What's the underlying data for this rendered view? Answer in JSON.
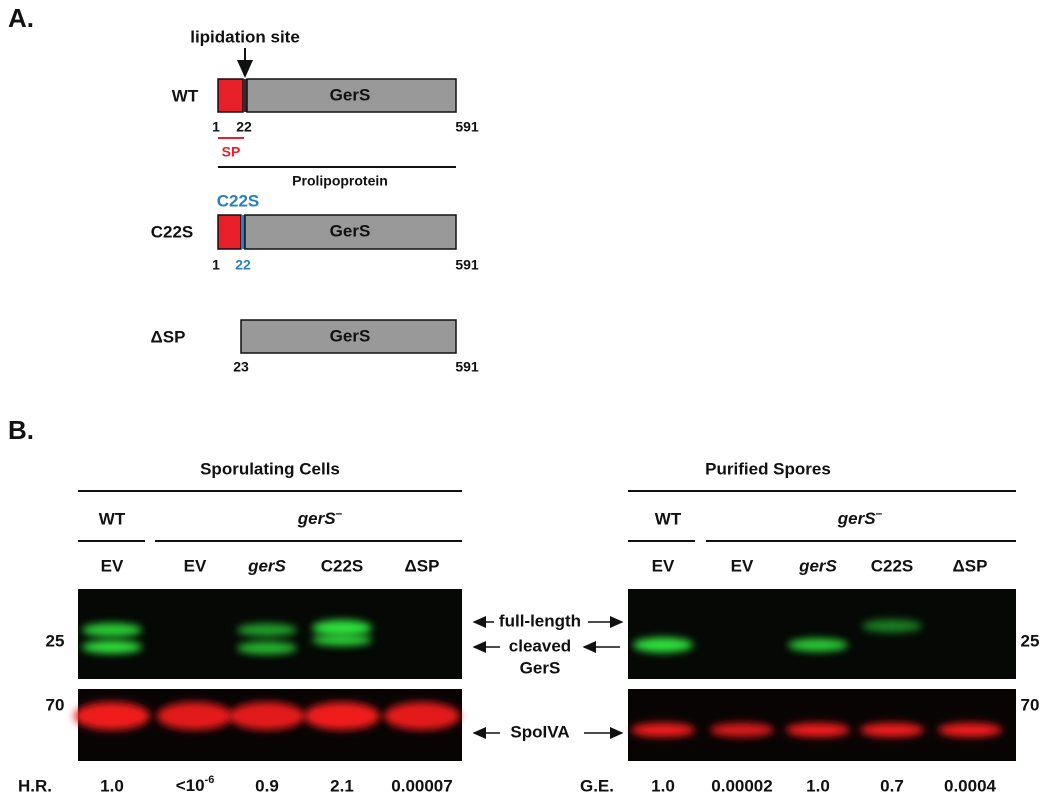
{
  "panel_a": {
    "label": "A.",
    "annotation": "lipidation site",
    "sp_label": "SP",
    "prolipoprotein": "Prolipoprotein",
    "mutation": "C22S",
    "constructs": [
      {
        "name": "WT",
        "domain": "GerS",
        "positions": [
          1,
          22,
          591
        ]
      },
      {
        "name": "C22S",
        "domain": "GerS",
        "positions": [
          1,
          22,
          591
        ]
      },
      {
        "name": "ΔSP",
        "domain": "GerS",
        "positions": [
          23,
          591
        ]
      }
    ]
  },
  "panel_b": {
    "label": "B.",
    "band_labels": [
      "full-length",
      "cleaved",
      "GerS",
      "SpoIVA"
    ],
    "blots": [
      {
        "title": "Sporulating Cells",
        "wt": "WT",
        "mutant": "gerS",
        "mutant_sup": "–",
        "lanes": [
          "EV",
          "EV",
          "gerS",
          "C22S",
          "ΔSP"
        ],
        "markers": [
          25,
          70
        ],
        "quant_label": "H.R.",
        "quant": [
          "1.0",
          {
            "base": "<10",
            "sup": "-6"
          },
          "0.9",
          "2.1",
          "0.00007"
        ]
      },
      {
        "title": "Purified Spores",
        "wt": "WT",
        "mutant": "gerS",
        "mutant_sup": "–",
        "lanes": [
          "EV",
          "EV",
          "gerS",
          "C22S",
          "ΔSP"
        ],
        "markers": [
          25,
          70
        ],
        "quant_label": "G.E.",
        "quant": [
          "1.0",
          "0.00002",
          "1.0",
          "0.7",
          "0.0004"
        ]
      }
    ]
  }
}
